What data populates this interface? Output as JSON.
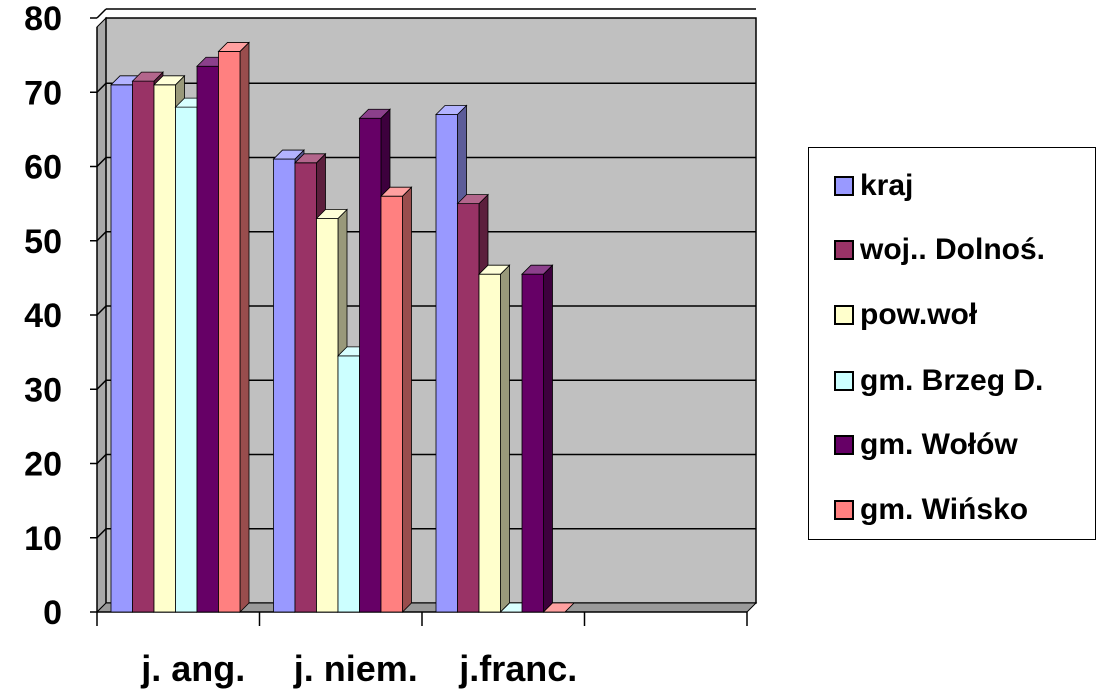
{
  "chart_data": {
    "type": "bar",
    "title": "",
    "xlabel": "",
    "ylabel": "",
    "ylim": [
      0,
      80
    ],
    "yticks": [
      "0",
      "10",
      "20",
      "30",
      "40",
      "50",
      "60",
      "70",
      "80"
    ],
    "grid": true,
    "legend_position": "right",
    "categories": [
      "j. ang.",
      "j. niem.",
      "j.franc."
    ],
    "series": [
      {
        "name": "kraj",
        "color": "#9999ff",
        "values": [
          71,
          61,
          67
        ]
      },
      {
        "name": "woj.. Dolnoś.",
        "color": "#993366",
        "values": [
          71.5,
          60.5,
          55
        ]
      },
      {
        "name": "pow.woł",
        "color": "#ffffcc",
        "values": [
          71,
          53,
          45.5
        ]
      },
      {
        "name": "gm. Brzeg D.",
        "color": "#ccffff",
        "values": [
          68,
          34.5,
          0
        ]
      },
      {
        "name": "gm. Wołów",
        "color": "#660066",
        "values": [
          73.5,
          66.5,
          45.5
        ]
      },
      {
        "name": "gm. Wińsko",
        "color": "#ff8080",
        "values": [
          75.5,
          56,
          0
        ]
      }
    ]
  }
}
